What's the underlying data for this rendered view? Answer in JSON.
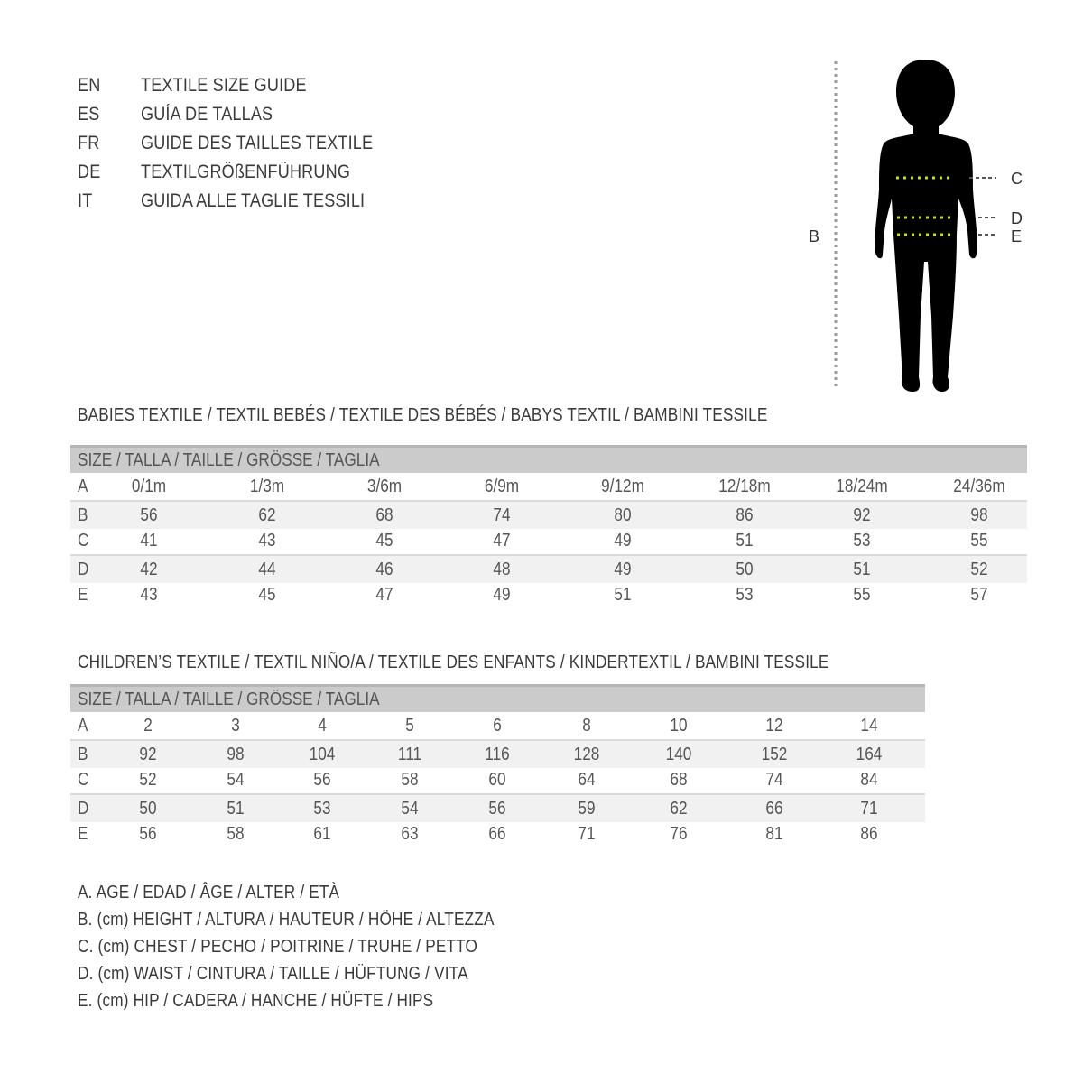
{
  "titles": [
    {
      "lang": "EN",
      "text": "TEXTILE SIZE GUIDE"
    },
    {
      "lang": "ES",
      "text": "GUÍA DE TALLAS"
    },
    {
      "lang": "FR",
      "text": "GUIDE DES TAILLES TEXTILE"
    },
    {
      "lang": "DE",
      "text": "TEXTILGRÖßENFÜHRUNG"
    },
    {
      "lang": "IT",
      "text": "GUIDA ALLE TAGLIE TESSILI"
    }
  ],
  "figure": {
    "labels": {
      "b": "B",
      "c": "C",
      "d": "D",
      "e": "E"
    },
    "measure_line_color": "#c8e000"
  },
  "babies": {
    "heading": "BABIES TEXTILE / TEXTIL BEBÉS / TEXTILE DES BÉBÉS / BABYS TEXTIL  / BAMBINI TESSILE",
    "header": "SIZE / TALLA / TAILLE / GRÖSSE / TAGLIA",
    "rows": [
      {
        "label": "A",
        "values": [
          "0/1m",
          "1/3m",
          "3/6m",
          "6/9m",
          "9/12m",
          "12/18m",
          "18/24m",
          "24/36m"
        ]
      },
      {
        "label": "B",
        "values": [
          "56",
          "62",
          "68",
          "74",
          "80",
          "86",
          "92",
          "98"
        ]
      },
      {
        "label": "C",
        "values": [
          "41",
          "43",
          "45",
          "47",
          "49",
          "51",
          "53",
          "55"
        ]
      },
      {
        "label": "D",
        "values": [
          "42",
          "44",
          "46",
          "48",
          "49",
          "50",
          "51",
          "52"
        ]
      },
      {
        "label": "E",
        "values": [
          "43",
          "45",
          "47",
          "49",
          "51",
          "53",
          "55",
          "57"
        ]
      }
    ]
  },
  "children": {
    "heading": "CHILDREN’S TEXTILE / TEXTIL NIÑO/A / TEXTILE DES ENFANTS / KINDERTEXTIL / BAMBINI TESSILE",
    "header": "SIZE / TALLA / TAILLE / GRÖSSE / TAGLIA",
    "rows": [
      {
        "label": "A",
        "values": [
          "2",
          "3",
          "4",
          "5",
          "6",
          "8",
          "10",
          "12",
          "14"
        ]
      },
      {
        "label": "B",
        "values": [
          "92",
          "98",
          "104",
          "111",
          "116",
          "128",
          "140",
          "152",
          "164"
        ]
      },
      {
        "label": "C",
        "values": [
          "52",
          "54",
          "56",
          "58",
          "60",
          "64",
          "68",
          "74",
          "84"
        ]
      },
      {
        "label": "D",
        "values": [
          "50",
          "51",
          "53",
          "54",
          "56",
          "59",
          "62",
          "66",
          "71"
        ]
      },
      {
        "label": "E",
        "values": [
          "56",
          "58",
          "61",
          "63",
          "66",
          "71",
          "76",
          "81",
          "86"
        ]
      }
    ]
  },
  "legend": [
    "A. AGE / EDAD / ÂGE / ALTER / ETÀ",
    "B. (cm) HEIGHT / ALTURA / HAUTEUR / HÖHE / ALTEZZA",
    "C. (cm) CHEST / PECHO / POITRINE / TRUHE / PETTO",
    "D. (cm) WAIST / CINTURA / TAILLE / HÜFTUNG / VITA",
    "E. (cm) HIP / CADERA / HANCHE / HÜFTE / HIPS"
  ]
}
